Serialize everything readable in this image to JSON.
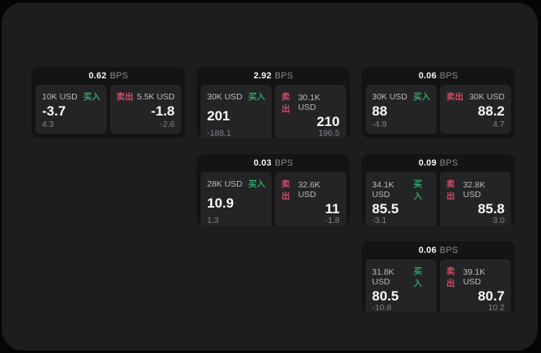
{
  "labels": {
    "bps_unit": "BPS",
    "buy": "买入",
    "sell": "卖出"
  },
  "colors": {
    "page_background": "#050505",
    "window_background": "#1d1d1e",
    "card_background": "#141415",
    "panel_background": "#242426",
    "buy_green": "#2fa566",
    "sell_red": "#d44b66",
    "price_text": "#fafafa",
    "muted_text": "#838388"
  },
  "cards": [
    {
      "bps": "0.62",
      "buy": {
        "size": "10K USD",
        "price": "-3.7",
        "delta": "4.3"
      },
      "sell": {
        "size": "5.5K USD",
        "price": "-1.8",
        "delta": "-2.6"
      }
    },
    {
      "bps": "2.92",
      "buy": {
        "size": "30K USD",
        "price": "201",
        "delta": "-188.1"
      },
      "sell": {
        "size": "30.1K USD",
        "price": "210",
        "delta": "196.5"
      }
    },
    {
      "bps": "0.06",
      "buy": {
        "size": "30K USD",
        "price": "88",
        "delta": "-4.9"
      },
      "sell": {
        "size": "30K USD",
        "price": "88.2",
        "delta": "4.7"
      }
    },
    {
      "bps": "0.03",
      "buy": {
        "size": "28K USD",
        "price": "10.9",
        "delta": "1.3"
      },
      "sell": {
        "size": "32.6K USD",
        "price": "11",
        "delta": "-1.8"
      }
    },
    {
      "bps": "0.09",
      "buy": {
        "size": "34.1K USD",
        "price": "85.5",
        "delta": "-3.1"
      },
      "sell": {
        "size": "32.8K USD",
        "price": "85.8",
        "delta": "3.0"
      }
    },
    {
      "bps": "0.06",
      "buy": {
        "size": "31.8K USD",
        "price": "80.5",
        "delta": "-10.8"
      },
      "sell": {
        "size": "39.1K USD",
        "price": "80.7",
        "delta": "10.2"
      }
    }
  ]
}
